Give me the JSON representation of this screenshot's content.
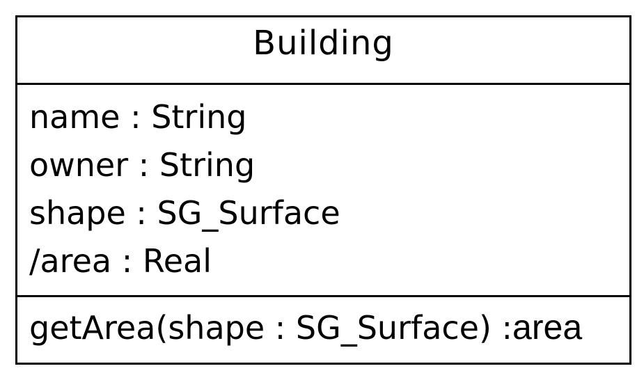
{
  "class": {
    "name": "Building",
    "attributes": [
      "name : String",
      "owner : String",
      "shape : SG_Surface",
      "/area : Real"
    ],
    "operations": [
      {
        "signature": "getArea(shape : SG_Surface) :",
        "return_type": "area"
      }
    ]
  }
}
